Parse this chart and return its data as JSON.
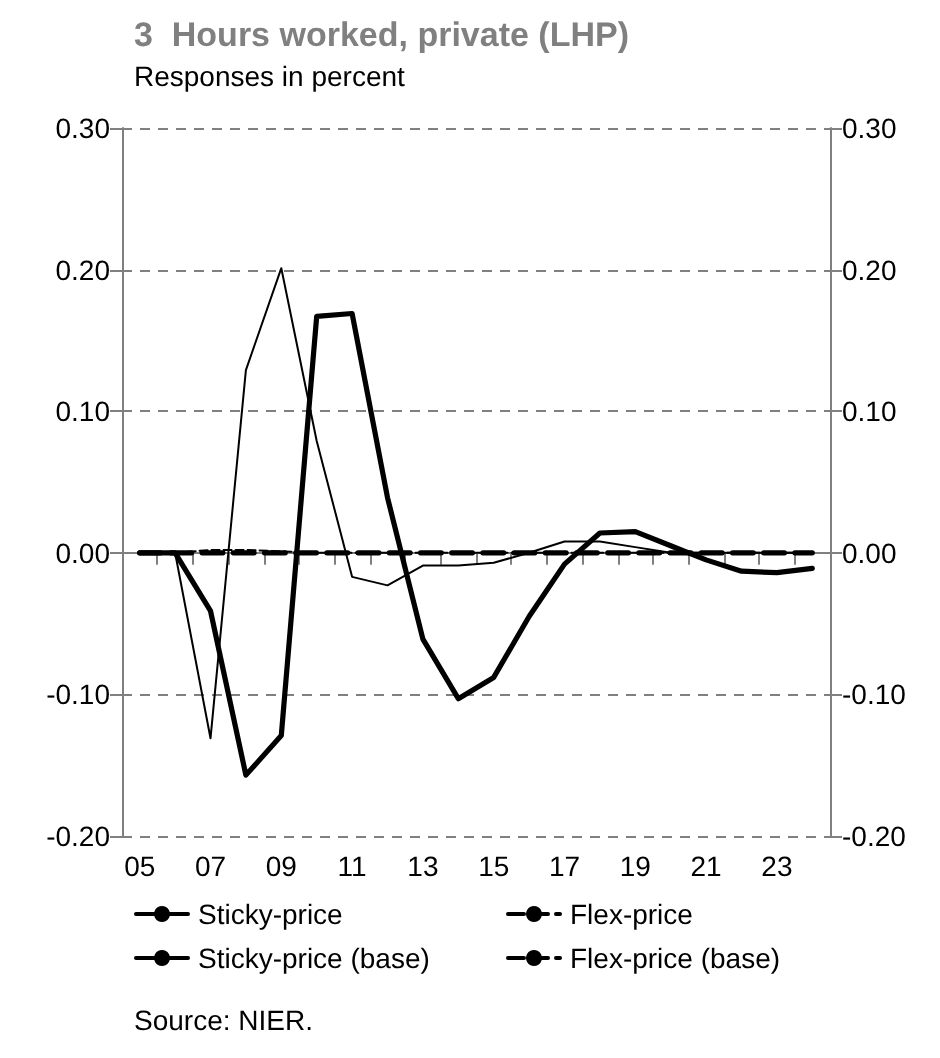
{
  "chart_data": {
    "type": "line",
    "title": "3  Hours worked, private (LHP)",
    "subtitle": "Responses in percent",
    "categories": [
      "05",
      null,
      "07",
      null,
      "09",
      null,
      "11",
      null,
      "13",
      null,
      "15",
      null,
      "17",
      null,
      "19",
      null,
      "21",
      null,
      "23",
      null
    ],
    "series": [
      {
        "name": "Sticky-price",
        "color": "#000000",
        "line_style": "solid",
        "values": [
          0,
          0,
          -0.041,
          -0.157,
          -0.129,
          0.167,
          0.169,
          0.039,
          -0.061,
          -0.103,
          -0.088,
          -0.045,
          -0.008,
          0.014,
          0.015,
          0.005,
          -0.005,
          -0.013,
          -0.014,
          -0.011
        ]
      },
      {
        "name": "Flex-price",
        "color": "#000000",
        "line_style": "dashed",
        "values": [
          0,
          0,
          0,
          0,
          0,
          0,
          0,
          0,
          0,
          0,
          0,
          0,
          0,
          0,
          0,
          0,
          0,
          0,
          0,
          0
        ]
      },
      {
        "name": "Sticky-price (base)",
        "color": "#000000",
        "line_style": "solid",
        "values": [
          0,
          0,
          -0.131,
          0.129,
          0.201,
          0.079,
          -0.017,
          -0.023,
          -0.009,
          -0.009,
          -0.007,
          0,
          0.008,
          0.008,
          0.004,
          0,
          0,
          0,
          0,
          0
        ]
      },
      {
        "name": "Flex-price (base)",
        "color": "#000000",
        "line_style": "dashed",
        "values": [
          0,
          0,
          0.002,
          0.002,
          0.001,
          0,
          0,
          0,
          0,
          0,
          0,
          0,
          0,
          0,
          0,
          0,
          0,
          0,
          0,
          0
        ]
      }
    ],
    "ylim": [
      -0.2,
      0.3
    ],
    "yticks": [
      {
        "value": -0.2,
        "label": "-0.20"
      },
      {
        "value": -0.1,
        "label": "-0.10"
      },
      {
        "value": 0,
        "label": "0.00"
      },
      {
        "value": 0.1,
        "label": "0.10"
      },
      {
        "value": 0.2,
        "label": "0.20"
      },
      {
        "value": 0.3,
        "label": "0.30"
      }
    ],
    "y2lim": [
      -0.2,
      0.3
    ],
    "y2ticks": [
      {
        "value": -0.2,
        "label": "-0.20"
      },
      {
        "value": -0.1,
        "label": "-0.10"
      },
      {
        "value": 0,
        "label": "0.00"
      },
      {
        "value": 0.1,
        "label": "0.10"
      },
      {
        "value": 0.2,
        "label": "0.20"
      },
      {
        "value": 0.3,
        "label": "0.30"
      }
    ],
    "grid": "y",
    "legend": "bottom",
    "marker": "none",
    "annotations": [
      "Source: NIER."
    ]
  }
}
